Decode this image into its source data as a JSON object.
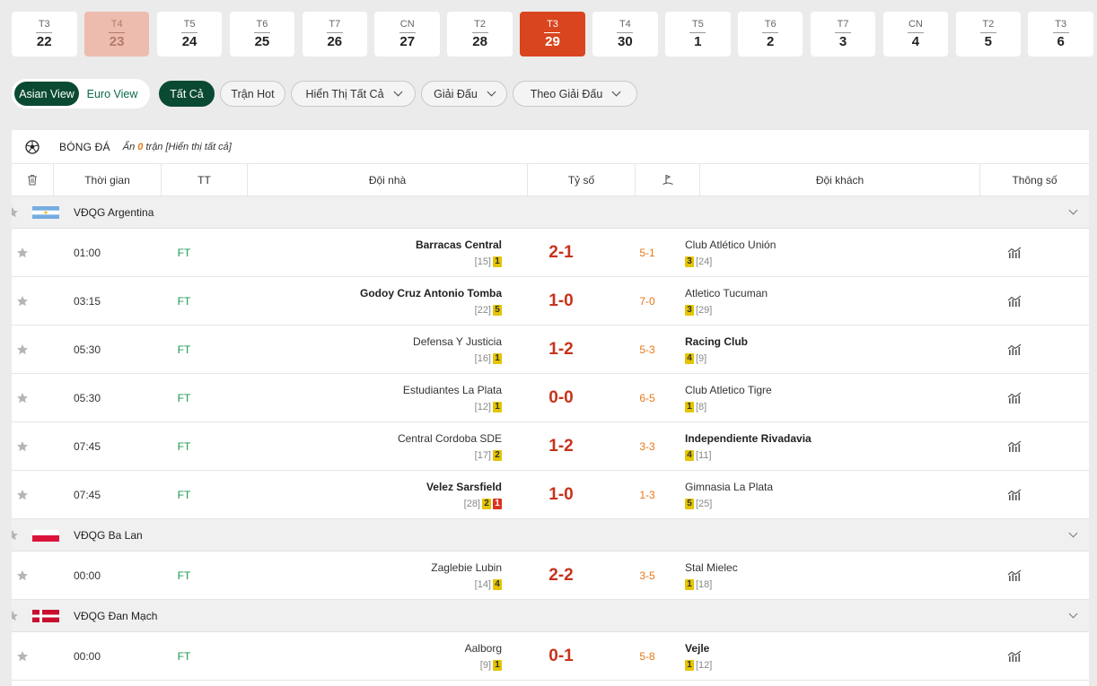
{
  "dates": [
    {
      "dow": "T3",
      "day": "22",
      "state": "normal"
    },
    {
      "dow": "T4",
      "day": "23",
      "state": "past"
    },
    {
      "dow": "T5",
      "day": "24",
      "state": "normal"
    },
    {
      "dow": "T6",
      "day": "25",
      "state": "normal"
    },
    {
      "dow": "T7",
      "day": "26",
      "state": "normal"
    },
    {
      "dow": "CN",
      "day": "27",
      "state": "normal"
    },
    {
      "dow": "T2",
      "day": "28",
      "state": "normal"
    },
    {
      "dow": "T3",
      "day": "29",
      "state": "active"
    },
    {
      "dow": "T4",
      "day": "30",
      "state": "normal"
    },
    {
      "dow": "T5",
      "day": "1",
      "state": "normal"
    },
    {
      "dow": "T6",
      "day": "2",
      "state": "normal"
    },
    {
      "dow": "T7",
      "day": "3",
      "state": "normal"
    },
    {
      "dow": "CN",
      "day": "4",
      "state": "normal"
    },
    {
      "dow": "T2",
      "day": "5",
      "state": "normal"
    },
    {
      "dow": "T3",
      "day": "6",
      "state": "normal"
    }
  ],
  "view_toggle": {
    "asian": "Asian View",
    "euro": "Euro View"
  },
  "filters": {
    "all": "Tất Cả",
    "hot": "Trận Hot",
    "show_all": "Hiển Thị Tất Cả",
    "league": "Giải Đấu",
    "by_league": "Theo Giải Đấu"
  },
  "sport": {
    "name": "BÓNG ĐÁ",
    "hidden_prefix": "Ẩn",
    "hidden_count": "0",
    "hidden_suffix": "trận [Hiển thị tất cả]"
  },
  "columns": {
    "time": "Thời gian",
    "tt": "TT",
    "home": "Đội nhà",
    "score": "Tỷ số",
    "away": "Đội khách",
    "stats": "Thông số"
  },
  "colors": {
    "accent": "#0b4a32",
    "active_date": "#d9451e",
    "score": "#c8321b",
    "halftime": "#e67817",
    "status": "#1a9a4e"
  },
  "leagues": [
    {
      "name": "VĐQG Argentina",
      "flag": "argentina",
      "matches": [
        {
          "time": "01:00",
          "status": "FT",
          "home": "Barracas Central",
          "home_rank": "[15]",
          "home_cards": [
            {
              "v": "1",
              "c": "y"
            }
          ],
          "home_win": true,
          "score": "2-1",
          "ht": "5-1",
          "away": "Club Atlético Unión",
          "away_rank": "[24]",
          "away_cards": [
            {
              "v": "3",
              "c": "y"
            }
          ],
          "away_win": false
        },
        {
          "time": "03:15",
          "status": "FT",
          "home": "Godoy Cruz Antonio Tomba",
          "home_rank": "[22]",
          "home_cards": [
            {
              "v": "5",
              "c": "y"
            }
          ],
          "home_win": true,
          "score": "1-0",
          "ht": "7-0",
          "away": "Atletico Tucuman",
          "away_rank": "[29]",
          "away_cards": [
            {
              "v": "3",
              "c": "y"
            }
          ],
          "away_win": false
        },
        {
          "time": "05:30",
          "status": "FT",
          "home": "Defensa Y Justicia",
          "home_rank": "[16]",
          "home_cards": [
            {
              "v": "1",
              "c": "y"
            }
          ],
          "home_win": false,
          "score": "1-2",
          "ht": "5-3",
          "away": "Racing Club",
          "away_rank": "[9]",
          "away_cards": [
            {
              "v": "4",
              "c": "y"
            }
          ],
          "away_win": true
        },
        {
          "time": "05:30",
          "status": "FT",
          "home": "Estudiantes La Plata",
          "home_rank": "[12]",
          "home_cards": [
            {
              "v": "1",
              "c": "y"
            }
          ],
          "home_win": false,
          "score": "0-0",
          "ht": "6-5",
          "away": "Club Atletico Tigre",
          "away_rank": "[8]",
          "away_cards": [
            {
              "v": "1",
              "c": "y"
            }
          ],
          "away_win": false
        },
        {
          "time": "07:45",
          "status": "FT",
          "home": "Central Cordoba SDE",
          "home_rank": "[17]",
          "home_cards": [
            {
              "v": "2",
              "c": "y"
            }
          ],
          "home_win": false,
          "score": "1-2",
          "ht": "3-3",
          "away": "Independiente Rivadavia",
          "away_rank": "[11]",
          "away_cards": [
            {
              "v": "4",
              "c": "y"
            }
          ],
          "away_win": true
        },
        {
          "time": "07:45",
          "status": "FT",
          "home": "Velez Sarsfield",
          "home_rank": "[28]",
          "home_cards": [
            {
              "v": "2",
              "c": "y"
            },
            {
              "v": "1",
              "c": "r"
            }
          ],
          "home_win": true,
          "score": "1-0",
          "ht": "1-3",
          "away": "Gimnasia La Plata",
          "away_rank": "[25]",
          "away_cards": [
            {
              "v": "5",
              "c": "y"
            }
          ],
          "away_win": false
        }
      ]
    },
    {
      "name": "VĐQG Ba Lan",
      "flag": "poland",
      "matches": [
        {
          "time": "00:00",
          "status": "FT",
          "home": "Zaglebie Lubin",
          "home_rank": "[14]",
          "home_cards": [
            {
              "v": "4",
              "c": "y"
            }
          ],
          "home_win": false,
          "score": "2-2",
          "ht": "3-5",
          "away": "Stal Mielec",
          "away_rank": "[18]",
          "away_cards": [
            {
              "v": "1",
              "c": "y"
            }
          ],
          "away_win": false
        }
      ]
    },
    {
      "name": "VĐQG Đan Mạch",
      "flag": "denmark",
      "matches": [
        {
          "time": "00:00",
          "status": "FT",
          "home": "Aalborg",
          "home_rank": "[9]",
          "home_cards": [
            {
              "v": "1",
              "c": "y"
            }
          ],
          "home_win": false,
          "score": "0-1",
          "ht": "5-8",
          "away": "Vejle",
          "away_rank": "[12]",
          "away_cards": [
            {
              "v": "1",
              "c": "y"
            }
          ],
          "away_win": true
        }
      ]
    }
  ]
}
